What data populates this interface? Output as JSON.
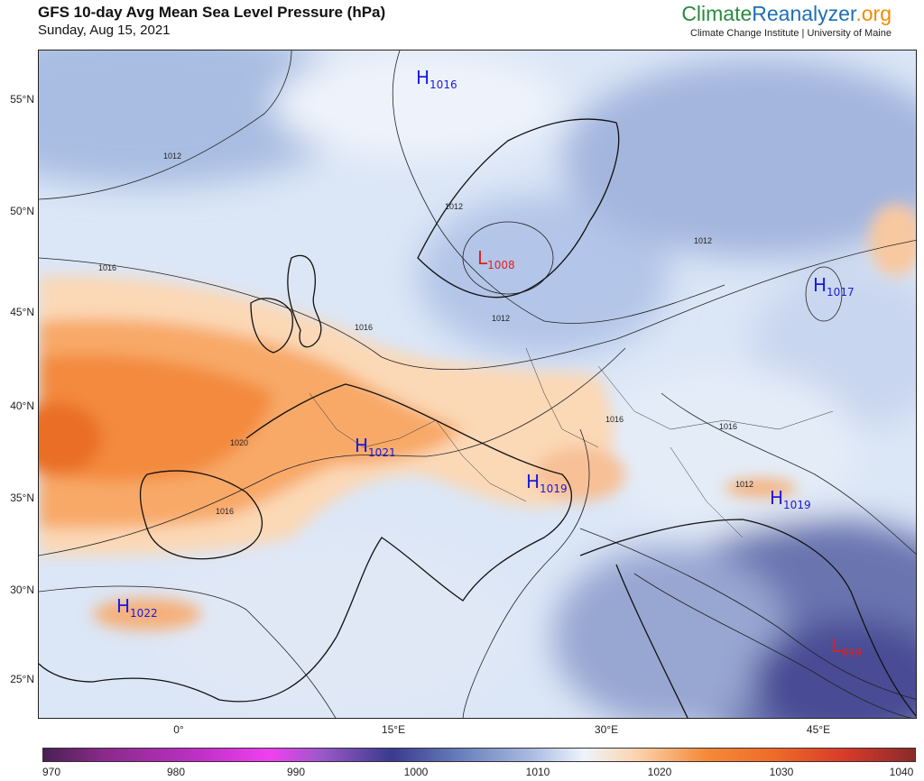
{
  "header": {
    "title": "GFS 10-day Avg Mean Sea Level Pressure (hPa)",
    "date": "Sunday, Aug 15, 2021",
    "brand": {
      "part1": "Climate",
      "part2": "Reanalyzer",
      "part3": ".org"
    },
    "affiliation": "Climate Change Institute | University of Maine"
  },
  "map": {
    "lat_labels": [
      "55°N",
      "50°N",
      "45°N",
      "40°N",
      "35°N",
      "30°N",
      "25°N"
    ],
    "lon_labels": [
      "0°",
      "15°E",
      "30°E",
      "45°E"
    ],
    "pressure_centers": [
      {
        "type": "H",
        "value": "1016",
        "color": "#1a1adb"
      },
      {
        "type": "L",
        "value": "1008",
        "color": "#e02020"
      },
      {
        "type": "H",
        "value": "1017",
        "color": "#1a1adb"
      },
      {
        "type": "H",
        "value": "1021",
        "color": "#1a1adb"
      },
      {
        "type": "H",
        "value": "1019",
        "color": "#1a1adb"
      },
      {
        "type": "H",
        "value": "1019",
        "color": "#1a1adb"
      },
      {
        "type": "H",
        "value": "1022",
        "color": "#1a1adb"
      },
      {
        "type": "L",
        "value": "999",
        "color": "#e02020"
      }
    ],
    "contour_labels": [
      "1012",
      "1016",
      "1012",
      "1012",
      "1012",
      "1016",
      "1016",
      "1020",
      "1016",
      "1016",
      "1012"
    ]
  },
  "colorbar": {
    "labels": [
      "970",
      "980",
      "990",
      "1000",
      "1010",
      "1020",
      "1030",
      "1040"
    ]
  }
}
